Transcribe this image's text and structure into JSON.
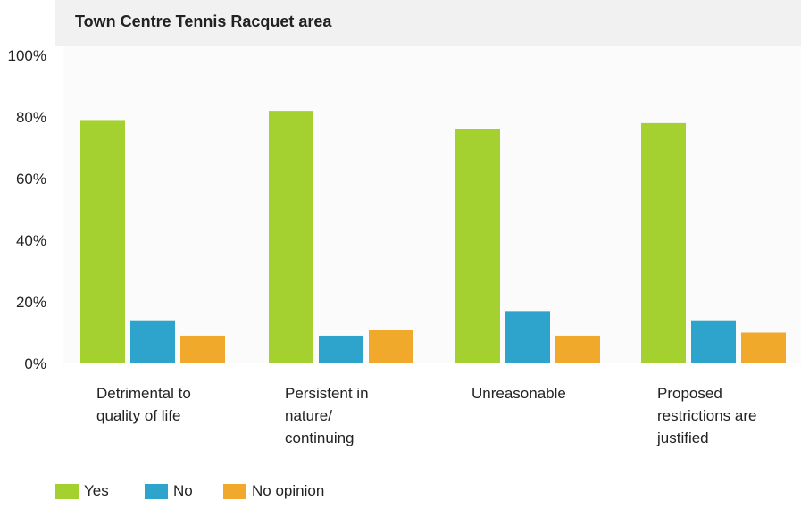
{
  "chart_data": {
    "type": "bar",
    "title": "Town Centre Tennis Racquet area",
    "categories": [
      [
        "Detrimental to",
        "quality of life"
      ],
      [
        "Persistent in",
        "nature/",
        "continuing"
      ],
      [
        "Unreasonable"
      ],
      [
        "Proposed",
        "restrictions are",
        "justified"
      ]
    ],
    "series": [
      {
        "name": "Yes",
        "color": "#a4d12f",
        "values": [
          79,
          82,
          76,
          78
        ]
      },
      {
        "name": "No",
        "color": "#2ea3cc",
        "values": [
          14,
          9,
          17,
          14
        ]
      },
      {
        "name": "No opinion",
        "color": "#f0a92a",
        "values": [
          9,
          11,
          9,
          10
        ]
      }
    ],
    "yticks": [
      "0%",
      "20%",
      "40%",
      "60%",
      "80%",
      "100%"
    ],
    "ylim": [
      0,
      100
    ],
    "grid": false,
    "legend_position": "bottom-left"
  }
}
